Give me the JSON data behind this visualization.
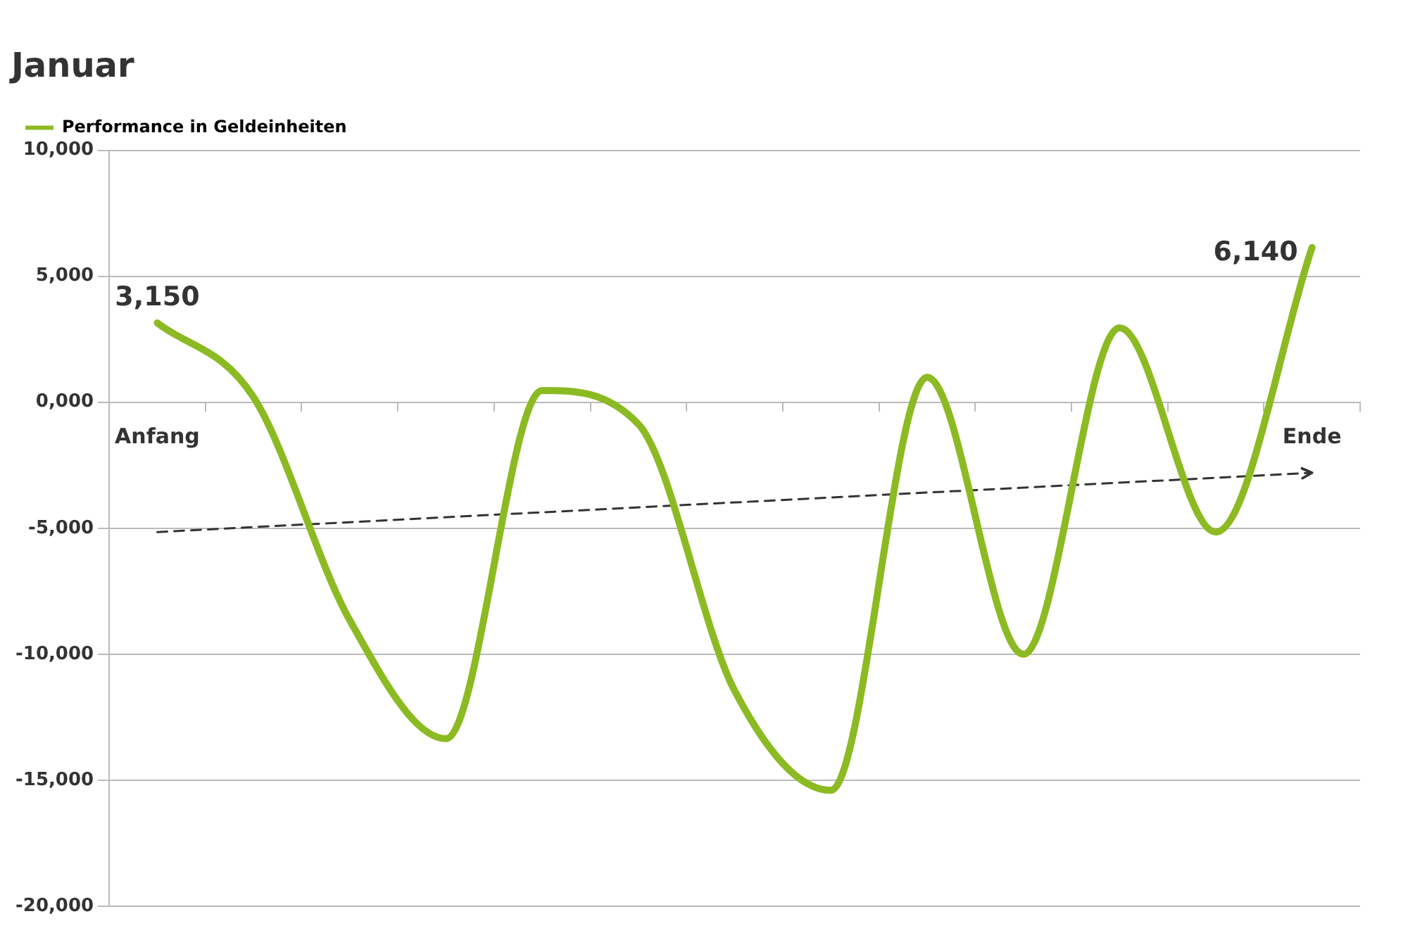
{
  "chart_data": {
    "type": "line",
    "title": "Januar",
    "categories": [
      "Anfang",
      null,
      null,
      null,
      null,
      null,
      null,
      null,
      null,
      null,
      null,
      null,
      "Ende"
    ],
    "series": [
      {
        "name": "Performance in Geldeinheiten",
        "color": "#8cba22",
        "values": [
          3150,
          200,
          -8650,
          -13350,
          470,
          -870,
          -11450,
          -15400,
          990,
          -10000,
          2950,
          -5150,
          6140
        ],
        "value_labels": [
          "3,150",
          null,
          null,
          null,
          null,
          null,
          null,
          null,
          null,
          null,
          null,
          null,
          "6,140"
        ]
      },
      {
        "type": "line",
        "x": [
          "Anfang",
          "Ende"
        ],
        "values": [
          -5150,
          -2800
        ],
        "color": "#333333",
        "line_style": "dashed"
      }
    ],
    "ylim": [
      -20000,
      10000
    ],
    "yticks": [
      {
        "value": -20000,
        "label": "-20,000"
      },
      {
        "value": -15000,
        "label": "-15,000"
      },
      {
        "value": -10000,
        "label": "-10,000"
      },
      {
        "value": -5000,
        "label": "-5,000"
      },
      {
        "value": 0,
        "label": "0,000"
      },
      {
        "value": 5000,
        "label": "5,000"
      },
      {
        "value": 10000,
        "label": "10,000"
      }
    ],
    "grid": "y",
    "legend": "top left"
  }
}
